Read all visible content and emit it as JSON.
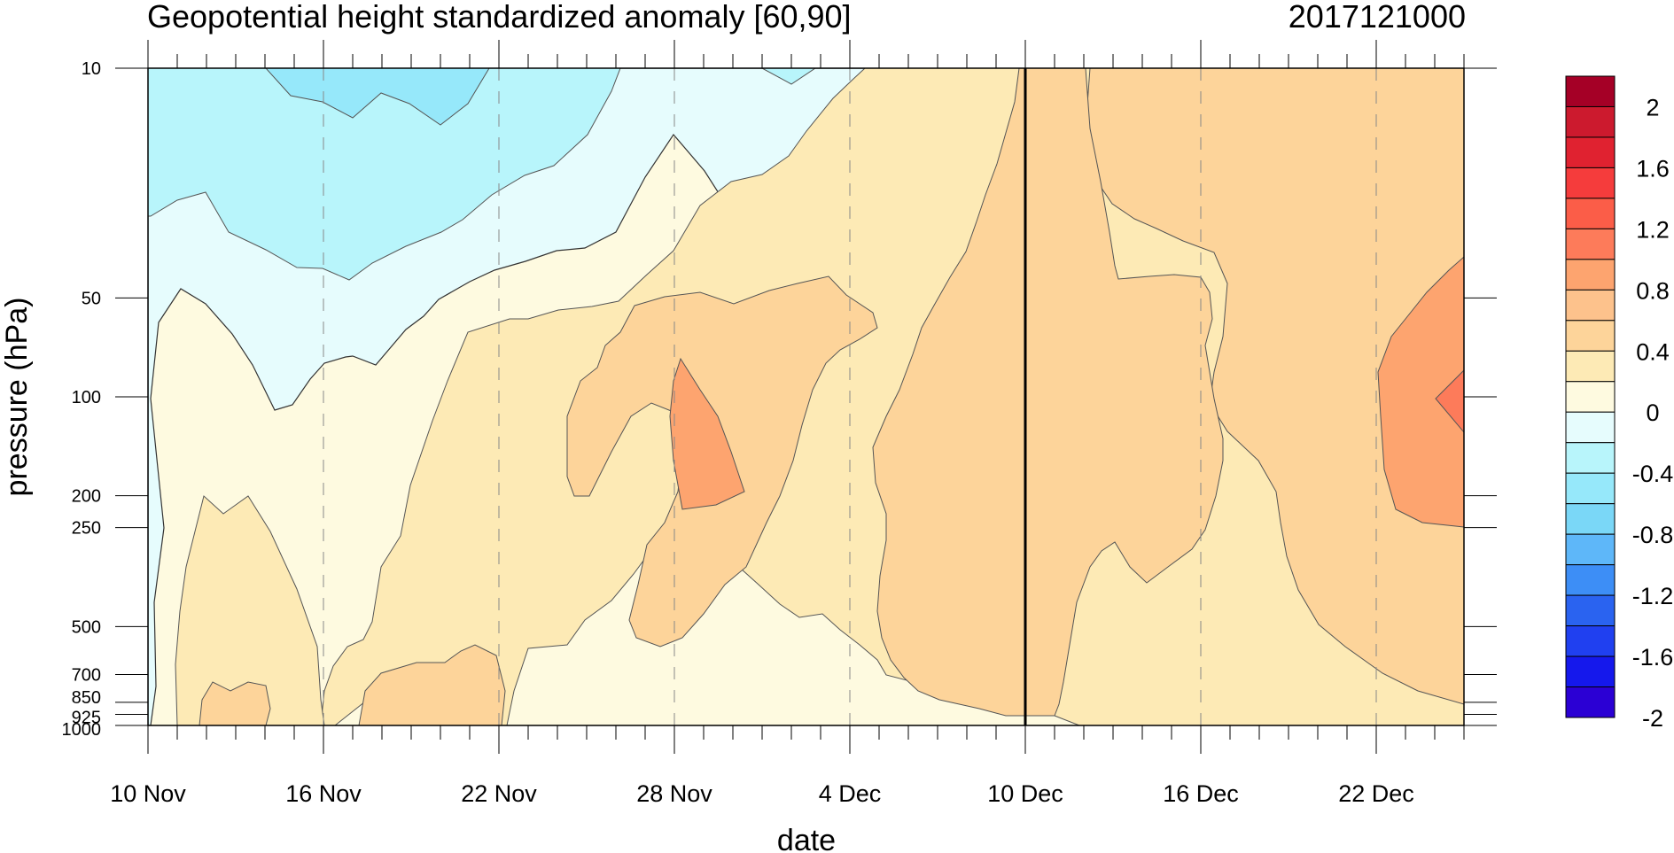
{
  "chart_data": {
    "type": "heatmap",
    "title": "Geopotential height standardized anomaly [60,90]",
    "date_label": "2017121000",
    "xlabel": "date",
    "ylabel": "pressure (hPa)",
    "x_ticks": [
      "10 Nov",
      "16 Nov",
      "22 Nov",
      "28 Nov",
      "4 Dec",
      "10 Dec",
      "16 Dec",
      "22 Dec"
    ],
    "x_tick_days": [
      0,
      6,
      12,
      18,
      24,
      30,
      36,
      42
    ],
    "x_range_days": [
      0,
      45
    ],
    "current_day": 30,
    "y_ticks": [
      10,
      50,
      100,
      200,
      250,
      500,
      700,
      850,
      925,
      1000
    ],
    "y_scale": "log",
    "y_reversed": true,
    "ylim": [
      10,
      1000
    ],
    "grid": "dashed vertical lines at labeled dates",
    "colorbar": {
      "labels": [
        "2",
        "1.6",
        "1.2",
        "0.8",
        "0.4",
        "0",
        "-0.4",
        "-0.8",
        "-1.2",
        "-1.6",
        "-2"
      ],
      "levels": [
        2,
        1.8,
        1.6,
        1.4,
        1.2,
        1.0,
        0.8,
        0.6,
        0.4,
        0.2,
        0,
        -0.2,
        -0.4,
        -0.6,
        -0.8,
        -1.0,
        -1.2,
        -1.4,
        -1.6,
        -1.8,
        -2
      ],
      "colors_top_to_bottom": [
        "#a50026",
        "#cc1a2e",
        "#e02230",
        "#f53c3c",
        "#fb5d48",
        "#fd7b5a",
        "#fda46f",
        "#fdc28c",
        "#fdd49a",
        "#fdeab5",
        "#fefae0",
        "#e6fcfd",
        "#b8f5fb",
        "#96e8fa",
        "#7ad7f7",
        "#5eb7f9",
        "#3d8ef6",
        "#2a63f0",
        "#2040f0",
        "#1518ec",
        "#2b00d4"
      ]
    },
    "fill_levels": {
      "band_neg06": "#96e8fa",
      "band_neg04": "#b8f5fb",
      "band_neg02": "#e6fcfd",
      "band_0": "#fefae0",
      "band_02": "#fdeab5",
      "band_04": "#fdd49a",
      "band_08": "#fda46f",
      "band_10": "#fd7b5a"
    }
  }
}
